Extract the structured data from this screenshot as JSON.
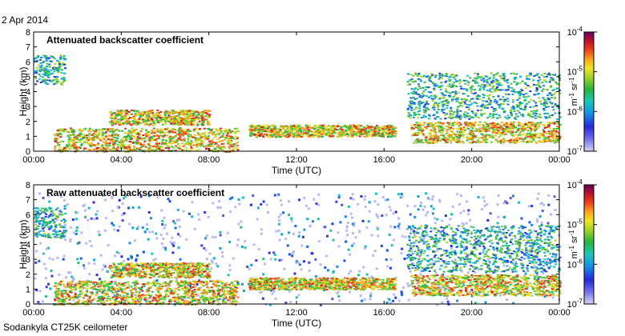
{
  "page": {
    "date": "2 Apr 2014",
    "footer": "Sodankyla CT25K ceilometer"
  },
  "chart_data": [
    {
      "type": "heatmap",
      "title": "Attenuated backscatter coefficient",
      "xlabel": "Time (UTC)",
      "ylabel": "Height (km)",
      "x_ticks": [
        "00:00",
        "04:00",
        "08:00",
        "12:00",
        "16:00",
        "20:00",
        "00:00"
      ],
      "x_range_hours": [
        0,
        24
      ],
      "y_ticks": [
        0,
        1,
        2,
        3,
        4,
        5,
        6,
        7,
        8
      ],
      "ylim": [
        0,
        8
      ],
      "colorbar": {
        "scale": "log",
        "range": [
          1e-07,
          0.0001
        ],
        "ticks": [
          "10^-4",
          "10^-5",
          "10^-6",
          "10^-7"
        ],
        "label": "m^-1 sr^-1"
      },
      "features": [
        {
          "name": "boundary layer",
          "from_hour": 0.9,
          "to_hour": 9.3,
          "height_km": [
            0.0,
            1.6
          ],
          "level": "high"
        },
        {
          "name": "elevated aerosol layer",
          "from_hour": 3.4,
          "to_hour": 8.0,
          "height_km": [
            1.8,
            2.8
          ],
          "level": "high"
        },
        {
          "name": "early cloud",
          "from_hour": 0.0,
          "to_hour": 1.4,
          "height_km": [
            4.5,
            6.5
          ],
          "level": "medium"
        },
        {
          "name": "midday layer",
          "from_hour": 9.8,
          "to_hour": 16.5,
          "height_km": [
            1.0,
            1.8
          ],
          "level": "high"
        },
        {
          "name": "evening layer",
          "from_hour": 17.2,
          "to_hour": 24.0,
          "height_km": [
            0.6,
            2.0
          ],
          "level": "high"
        },
        {
          "name": "evening high cloud",
          "from_hour": 17.0,
          "to_hour": 24.0,
          "height_km": [
            2.2,
            5.3
          ],
          "level": "medium"
        }
      ]
    },
    {
      "type": "heatmap",
      "title": "Raw attenuated backscatter coefficient",
      "xlabel": "Time (UTC)",
      "ylabel": "Height (km)",
      "x_ticks": [
        "00:00",
        "04:00",
        "08:00",
        "12:00",
        "16:00",
        "20:00",
        "00:00"
      ],
      "x_range_hours": [
        0,
        24
      ],
      "y_ticks": [
        0,
        1,
        2,
        3,
        4,
        5,
        6,
        7,
        8
      ],
      "ylim": [
        0,
        8
      ],
      "colorbar": {
        "scale": "log",
        "range": [
          1e-07,
          0.0001
        ],
        "ticks": [
          "10^-4",
          "10^-5",
          "10^-6",
          "10^-7"
        ],
        "label": "m^-1 sr^-1"
      },
      "features": [
        {
          "name": "raw noise field",
          "from_hour": 0.0,
          "to_hour": 24.0,
          "height_km": [
            0.0,
            7.5
          ],
          "level": "noise"
        },
        {
          "name": "boundary layer",
          "from_hour": 0.9,
          "to_hour": 9.3,
          "height_km": [
            0.0,
            1.6
          ],
          "level": "high"
        },
        {
          "name": "elevated aerosol layer",
          "from_hour": 3.4,
          "to_hour": 8.0,
          "height_km": [
            1.8,
            2.8
          ],
          "level": "high"
        },
        {
          "name": "early cloud",
          "from_hour": 0.0,
          "to_hour": 1.4,
          "height_km": [
            4.5,
            6.5
          ],
          "level": "medium"
        },
        {
          "name": "midday layer",
          "from_hour": 9.8,
          "to_hour": 16.5,
          "height_km": [
            1.0,
            1.8
          ],
          "level": "high"
        },
        {
          "name": "evening layer",
          "from_hour": 17.2,
          "to_hour": 24.0,
          "height_km": [
            0.6,
            2.0
          ],
          "level": "high"
        },
        {
          "name": "evening high cloud",
          "from_hour": 17.0,
          "to_hour": 24.0,
          "height_km": [
            2.2,
            5.3
          ],
          "level": "medium"
        }
      ]
    }
  ]
}
